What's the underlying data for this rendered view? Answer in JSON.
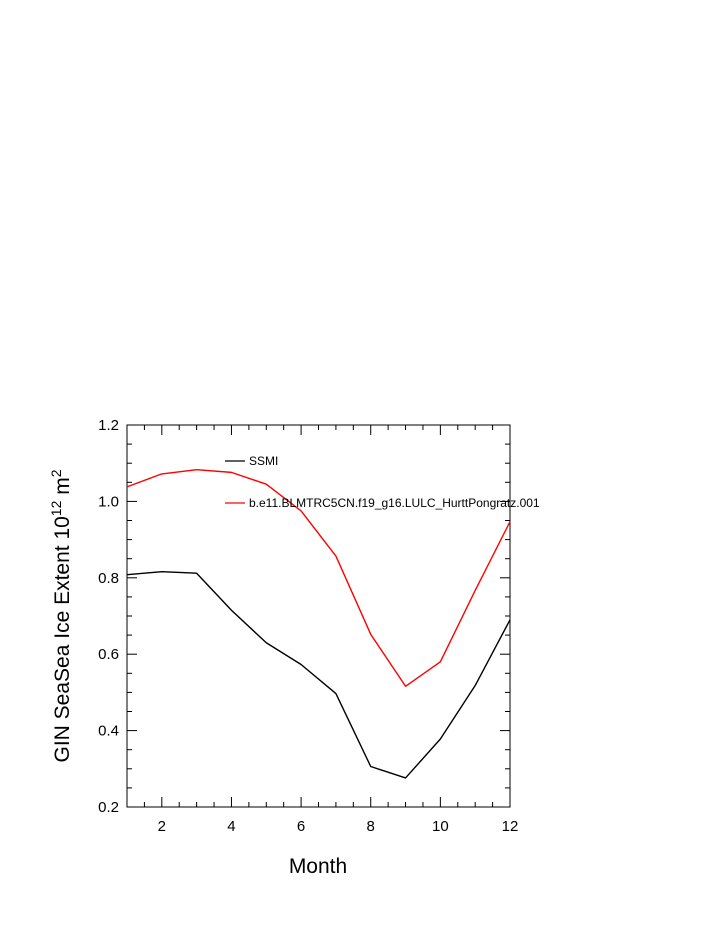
{
  "chart_data": {
    "type": "line",
    "title": "",
    "xlabel": "Month",
    "ylabel_main": "GIN SeaSea Ice Extent 10",
    "ylabel_exp1": "12",
    "ylabel_unit": " m",
    "ylabel_exp2": "2",
    "xlim": [
      1,
      12
    ],
    "ylim": [
      0.2,
      1.2
    ],
    "x_ticks": [
      2,
      4,
      6,
      8,
      10,
      12
    ],
    "y_ticks": [
      0.2,
      0.4,
      0.6,
      0.8,
      1.0,
      1.2
    ],
    "x_tick_labels": [
      "2",
      "4",
      "6",
      "8",
      "10",
      "12"
    ],
    "y_tick_labels": [
      "0.2",
      "0.4",
      "0.6",
      "0.8",
      "1.0",
      "1.2"
    ],
    "grid": false,
    "legend_position": "top-left inside",
    "x": [
      1,
      2,
      3,
      4,
      5,
      6,
      7,
      8,
      9,
      10,
      11,
      12
    ],
    "series": [
      {
        "name": "SSMI",
        "color": "#000000",
        "values": [
          0.808,
          0.816,
          0.812,
          0.715,
          0.63,
          0.573,
          0.497,
          0.306,
          0.276,
          0.378,
          0.518,
          0.69
        ]
      },
      {
        "name": "b.e11.BLMTRC5CN.f19_g16.LULC_HurttPongratz.001",
        "color": "#ff0000",
        "values": [
          1.038,
          1.072,
          1.083,
          1.076,
          1.045,
          0.975,
          0.857,
          0.652,
          0.516,
          0.58,
          0.767,
          0.947
        ]
      }
    ]
  }
}
